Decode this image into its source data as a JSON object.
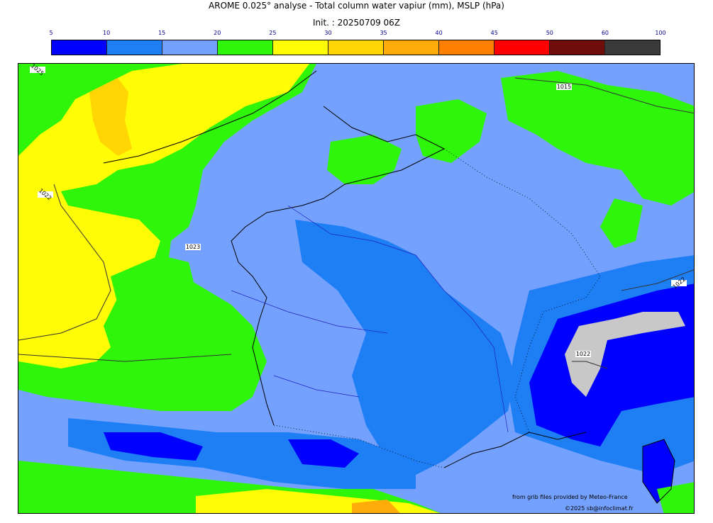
{
  "title": "AROME 0.025° analyse - Total column water vapiur (mm), MSLP (hPa)",
  "init": "Init. : 20250709 06Z",
  "colorbar": {
    "ticks": [
      "5",
      "10",
      "15",
      "20",
      "25",
      "30",
      "35",
      "40",
      "45",
      "50",
      "60",
      "100"
    ],
    "colors": [
      "#0000ff",
      "#1e7ff5",
      "#74a1fd",
      "#2ff50a",
      "#fffc05",
      "#ffd504",
      "#ffac0a",
      "#ff7f03",
      "#ff0000",
      "#6e0d0a",
      "#3a3a3a"
    ]
  },
  "isobar_labels": [
    "1025",
    "1022",
    "1023",
    "1015",
    "1022",
    "1022"
  ],
  "credits": {
    "line1": "from grib files provided by Meteo-France",
    "line2": "©2025 sb@infoclimat.fr"
  }
}
